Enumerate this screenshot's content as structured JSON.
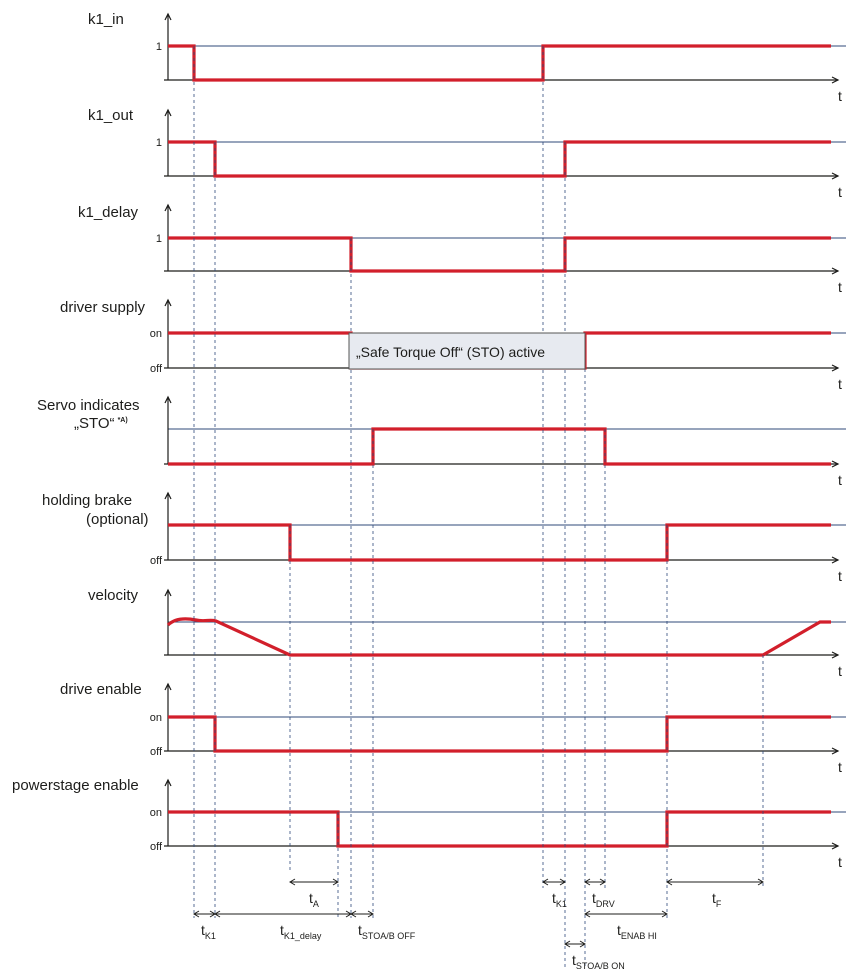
{
  "signals": [
    {
      "id": "k1_in",
      "label": [
        "k1_in"
      ],
      "hi": "1",
      "lo": ""
    },
    {
      "id": "k1_out",
      "label": [
        "k1_out"
      ],
      "hi": "1",
      "lo": ""
    },
    {
      "id": "k1_delay",
      "label": [
        "k1_delay"
      ],
      "hi": "1",
      "lo": ""
    },
    {
      "id": "driver_supply",
      "label": [
        "driver supply"
      ],
      "hi": "on",
      "lo": "off"
    },
    {
      "id": "servo_sto",
      "label": [
        "Servo indicates",
        "„STO“"
      ],
      "sup": "*A)",
      "hi": "",
      "lo": ""
    },
    {
      "id": "holding_brake",
      "label": [
        "holding brake",
        "(optional)"
      ],
      "hi": "",
      "lo": "off"
    },
    {
      "id": "velocity",
      "label": [
        "velocity"
      ],
      "hi": "",
      "lo": ""
    },
    {
      "id": "drive_enable",
      "label": [
        "drive enable"
      ],
      "hi": "on",
      "lo": "off"
    },
    {
      "id": "powerstage_enable",
      "label": [
        "powerstage enable"
      ],
      "hi": "on",
      "lo": "off"
    }
  ],
  "axis_label": "t",
  "sto_box": "„Safe Torque Off“ (STO) active",
  "timings": [
    {
      "id": "tA",
      "main": "t",
      "sub": "A"
    },
    {
      "id": "tK1_right",
      "main": "t",
      "sub": "K1"
    },
    {
      "id": "tDRV",
      "main": "t",
      "sub": "DRV"
    },
    {
      "id": "tF",
      "main": "t",
      "sub": "F"
    },
    {
      "id": "tK1_left",
      "main": "t",
      "sub": "K1"
    },
    {
      "id": "tK1_delay",
      "main": "t",
      "sub": "K1_delay"
    },
    {
      "id": "tSTO_off",
      "main": "t",
      "sub": "STOA/B OFF"
    },
    {
      "id": "tENAB",
      "main": "t",
      "sub": "ENAB HI"
    },
    {
      "id": "tSTO_on",
      "main": "t",
      "sub": "STOA/B ON"
    }
  ],
  "colors": {
    "trace": "#d21f2b",
    "reference": "#2f4a7a",
    "text": "#1d1d1b",
    "sto_box_fill": "#e7eaf0"
  }
}
